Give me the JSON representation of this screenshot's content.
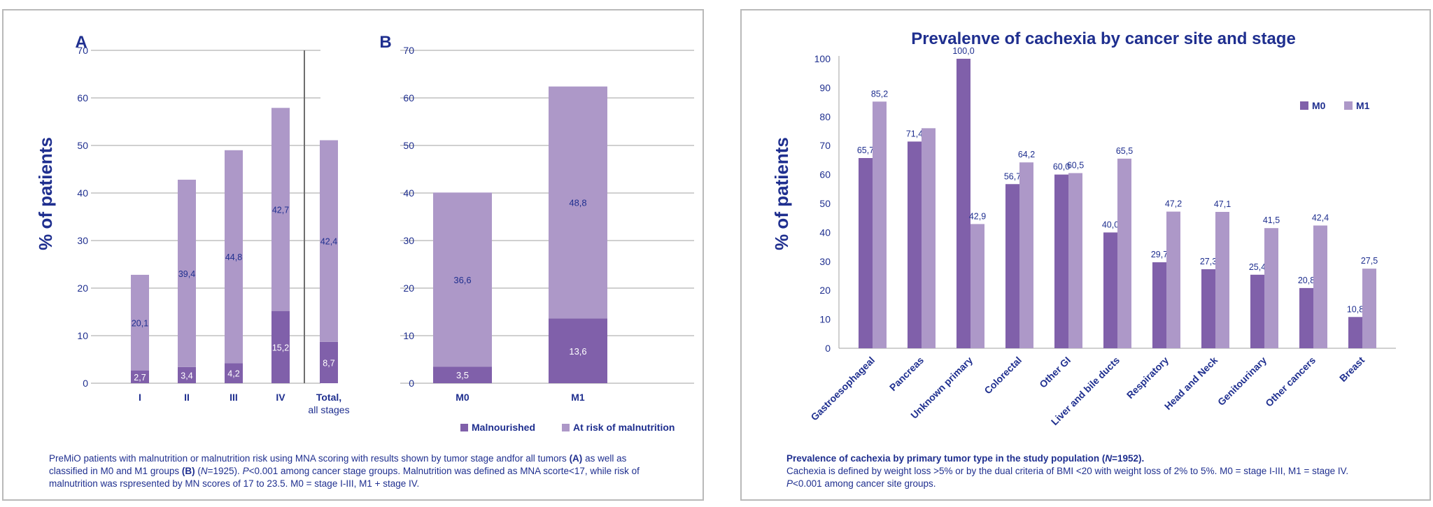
{
  "colors": {
    "m0": "#8060aa",
    "m1": "#ad98c8",
    "text": "#1f2f8f",
    "axis": "#a0a0a0"
  },
  "left_caption": {
    "p1": "PreMiO patients with malnutrition or malnutrition risk using MNA scoring with results shown by tumor stage andfor all tumors",
    "p2": "(A)",
    "p3": "as well as classified in M0 and M1 groups",
    "p4": "(B)",
    "p5": "(",
    "p6": "N",
    "p7": "=1925).",
    "p8": "P",
    "p9": "<0.001 among cancer stage groups. Malnutrition was defined as MNA scorte<17, while risk of malnutrition was rspresented by MN scores of 17 to 23.5. M0 = stage I-III, M1 + stage IV."
  },
  "right_caption": {
    "title_a": "Prevalence of cachexia by primary tumor type in the study population (",
    "title_b": "N",
    "title_c": "=1952).",
    "line1": "Cachexia is defined by weight loss >5% or by the dual criteria of BMI <20 with weight loss of 2% to 5%. M0 = stage I-III, M1 = stage IV.",
    "line2_a": "P",
    "line2_b": "<0.001 among cancer site groups."
  },
  "chart_data": [
    {
      "type": "bar",
      "stacked": true,
      "panel_label": "A",
      "ylabel": "% of patients",
      "ylim": [
        0,
        70
      ],
      "yticks": [
        0,
        10,
        20,
        30,
        40,
        50,
        60,
        70
      ],
      "categories": [
        "I",
        "II",
        "III",
        "IV",
        "Total,|all stages"
      ],
      "series": [
        {
          "name": "Malnourished",
          "values": [
            2.7,
            3.4,
            4.2,
            15.2,
            8.7
          ],
          "labels": [
            "2,7",
            "3,4",
            "4,2",
            "15,2",
            "8,7"
          ]
        },
        {
          "name": "At risk of malnutrition",
          "values": [
            20.1,
            39.4,
            44.8,
            42.7,
            42.4
          ],
          "labels": [
            "20,1",
            "39,4",
            "44,8",
            "42,7",
            "42,4"
          ]
        }
      ]
    },
    {
      "type": "bar",
      "stacked": true,
      "panel_label": "B",
      "ylim": [
        0,
        70
      ],
      "yticks": [
        0,
        10,
        20,
        30,
        40,
        50,
        60,
        70
      ],
      "categories": [
        "M0",
        "M1"
      ],
      "series": [
        {
          "name": "Malnourished",
          "values": [
            3.5,
            13.6
          ],
          "labels": [
            "3,5",
            "13,6"
          ]
        },
        {
          "name": "At risk of malnutrition",
          "values": [
            36.6,
            48.8
          ],
          "labels": [
            "36,6",
            "48,8"
          ]
        }
      ],
      "legend": [
        "Malnourished",
        "At risk of malnutrition"
      ],
      "legend_position": "bottom-right"
    },
    {
      "type": "bar",
      "stacked": false,
      "title": "Prevalenve of cachexia by cancer site and stage",
      "ylabel": "% of patients",
      "ylim": [
        0,
        100
      ],
      "yticks": [
        0,
        10,
        20,
        30,
        40,
        50,
        60,
        70,
        80,
        90,
        100
      ],
      "categories": [
        "Gastroesophageal",
        "Pancreas",
        "Unknown primary",
        "Colorectal",
        "Other GI",
        "Liver and bile ducts",
        "Respiratory",
        "Head and Neck",
        "Genitourinary",
        "Other cancers",
        "Breast"
      ],
      "series": [
        {
          "name": "M0",
          "values": [
            65.7,
            71.4,
            100.0,
            56.7,
            60.0,
            40.0,
            29.7,
            27.3,
            25.4,
            20.8,
            10.8
          ],
          "labels": [
            "65,7",
            "71,4",
            "100,0",
            "56,7",
            "60,0",
            "40,0",
            "29,7",
            "27,3",
            "25,4",
            "20,8",
            "10,8"
          ]
        },
        {
          "name": "M1",
          "values": [
            85.2,
            76.0,
            42.9,
            64.2,
            60.5,
            65.5,
            47.2,
            47.1,
            41.5,
            42.4,
            27.5
          ],
          "labels": [
            "85,2",
            "",
            "42,9",
            "64,2",
            "60,5",
            "65,5",
            "47,2",
            "47,1",
            "41,5",
            "42,4",
            "27,5"
          ]
        }
      ],
      "legend": [
        "M0",
        "M1"
      ],
      "legend_position": "top-right"
    }
  ]
}
